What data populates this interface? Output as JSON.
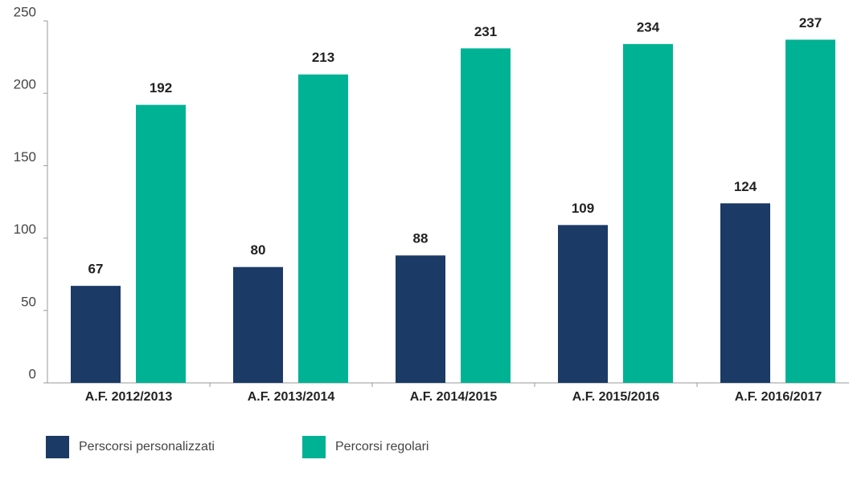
{
  "chart_data": {
    "type": "bar",
    "categories": [
      "A.F. 2012/2013",
      "A.F. 2013/2014",
      "A.F. 2014/2015",
      "A.F. 2015/2016",
      "A.F. 2016/2017"
    ],
    "series": [
      {
        "name": "Perscorsi personalizzati",
        "color": "#1b3a66",
        "values": [
          67,
          80,
          88,
          109,
          124
        ]
      },
      {
        "name": "Percorsi regolari",
        "color": "#00b294",
        "values": [
          192,
          213,
          231,
          234,
          237
        ]
      }
    ],
    "ylim": [
      0,
      250
    ],
    "yticks": [
      0,
      50,
      100,
      150,
      200,
      250
    ],
    "grid": false,
    "legend": "bottom"
  }
}
